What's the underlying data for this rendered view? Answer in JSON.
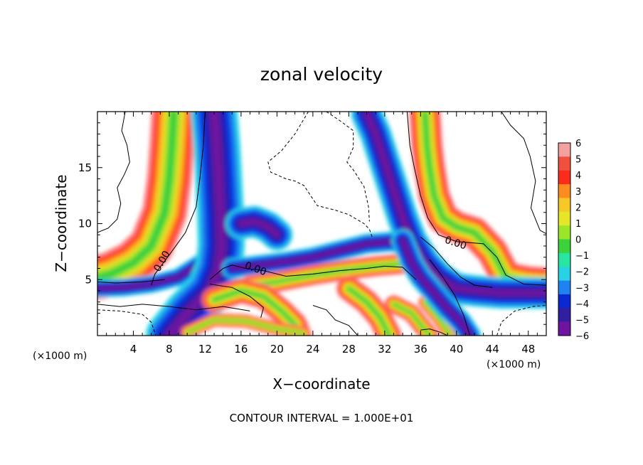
{
  "chart_data": {
    "type": "heatmap",
    "title": "zonal velocity",
    "xlabel": "X−coordinate",
    "ylabel": "Z−coordinate",
    "x_unit": "(×1000 m)",
    "footer": "CONTOUR INTERVAL = 1.000E+01",
    "xlim": [
      0,
      50
    ],
    "ylim": [
      0,
      20
    ],
    "x_ticks": [
      4,
      8,
      12,
      16,
      20,
      24,
      28,
      32,
      36,
      40,
      44,
      48
    ],
    "y_ticks": [
      5,
      10,
      15
    ],
    "colorbar": {
      "levels": [
        6,
        5,
        4,
        3,
        2,
        1,
        0,
        -1,
        -2,
        -3,
        -4,
        -5,
        -6
      ],
      "colors": [
        "#f4a0a0",
        "#f0503c",
        "#ff2a1e",
        "#ff8c1e",
        "#f5c828",
        "#e6e628",
        "#9be628",
        "#3cd23c",
        "#28e6a0",
        "#28d2e6",
        "#1e82f0",
        "#0a28d2",
        "#321ea0",
        "#6e14a0"
      ]
    },
    "contour_labels": [
      {
        "text": "0.00",
        "x": 7.5,
        "y": 6.5,
        "angle": -60
      },
      {
        "text": "0.00",
        "x": 17.5,
        "y": 5.7,
        "angle": 20
      },
      {
        "text": "0.00",
        "x": 39.8,
        "y": 8.0,
        "angle": 18
      }
    ],
    "features": [
      {
        "name": "jet-left",
        "kind": "positive",
        "points": [
          [
            8.5,
            19.8
          ],
          [
            8.3,
            17
          ],
          [
            8,
            14
          ],
          [
            7.5,
            11
          ],
          [
            6,
            8
          ],
          [
            4,
            6.5
          ],
          [
            1.5,
            5.5
          ],
          [
            0,
            5.2
          ]
        ],
        "half_width": 2.0
      },
      {
        "name": "band-left-neg",
        "kind": "negative",
        "points": [
          [
            0,
            4.2
          ],
          [
            3,
            4.3
          ],
          [
            6,
            4.6
          ],
          [
            9,
            5.2
          ],
          [
            11.5,
            6.5
          ]
        ],
        "half_width": 0.8
      },
      {
        "name": "jet-left-blue",
        "kind": "negative",
        "points": [
          [
            13,
            19.8
          ],
          [
            13.3,
            17
          ],
          [
            13.5,
            14
          ],
          [
            13.7,
            11
          ],
          [
            13.8,
            8
          ],
          [
            13.5,
            6
          ],
          [
            12.5,
            4
          ],
          [
            10,
            2
          ],
          [
            8,
            0
          ]
        ],
        "half_width": 2.1
      },
      {
        "name": "eddy-blob",
        "kind": "negative",
        "points": [
          [
            16,
            10
          ],
          [
            17.5,
            10.2
          ],
          [
            19,
            9.7
          ],
          [
            20,
            9.0
          ]
        ],
        "half_width": 1.4
      },
      {
        "name": "band-mid-neg",
        "kind": "negative",
        "points": [
          [
            15,
            6
          ],
          [
            18,
            6.3
          ],
          [
            21,
            6.6
          ],
          [
            24,
            7.0
          ],
          [
            27,
            7.6
          ],
          [
            30,
            8.2
          ],
          [
            33,
            8.4
          ],
          [
            35,
            7.6
          ],
          [
            37,
            6.4
          ]
        ],
        "half_width": 0.9
      },
      {
        "name": "band-mid-pos",
        "kind": "positive",
        "points": [
          [
            17,
            4.5
          ],
          [
            20,
            4.8
          ],
          [
            24,
            5.4
          ],
          [
            28,
            5.9
          ],
          [
            31,
            6.2
          ],
          [
            34,
            6.4
          ]
        ],
        "half_width": 0.9
      },
      {
        "name": "low-pos-a",
        "kind": "positive",
        "points": [
          [
            13,
            3.2
          ],
          [
            16,
            4.0
          ],
          [
            18.5,
            3.5
          ],
          [
            20.5,
            2.2
          ],
          [
            22,
            1.0
          ],
          [
            22.5,
            0
          ]
        ],
        "half_width": 1.1
      },
      {
        "name": "low-pos-b",
        "kind": "positive",
        "points": [
          [
            10,
            0.3
          ],
          [
            13,
            1.4
          ],
          [
            16.5,
            1.3
          ],
          [
            20,
            0.6
          ],
          [
            23,
            0.2
          ]
        ],
        "half_width": 0.6
      },
      {
        "name": "low-pos-c",
        "kind": "positive",
        "points": [
          [
            28,
            4.2
          ],
          [
            30,
            3.0
          ],
          [
            31.5,
            1.6
          ],
          [
            32.5,
            0
          ]
        ],
        "half_width": 1.1
      },
      {
        "name": "low-pos-d",
        "kind": "positive",
        "points": [
          [
            33,
            2.8
          ],
          [
            35,
            2.0
          ],
          [
            36,
            1.0
          ],
          [
            37,
            0
          ]
        ],
        "half_width": 0.8
      },
      {
        "name": "low-pos-e",
        "kind": "positive",
        "points": [
          [
            36.5,
            3.0
          ],
          [
            38,
            1.6
          ],
          [
            39.3,
            0
          ]
        ],
        "half_width": 0.6
      },
      {
        "name": "jet-right-pos",
        "kind": "positive",
        "points": [
          [
            36.5,
            19.8
          ],
          [
            36.7,
            17
          ],
          [
            37,
            15
          ],
          [
            37.5,
            12.5
          ],
          [
            38.5,
            10.5
          ],
          [
            40,
            9.7
          ],
          [
            42,
            9.2
          ],
          [
            44,
            7.5
          ],
          [
            45.5,
            5.2
          ],
          [
            48,
            4.8
          ],
          [
            50,
            4.7
          ]
        ],
        "half_width": 1.4
      },
      {
        "name": "jet-right-neg",
        "kind": "negative",
        "points": [
          [
            30,
            19.8
          ],
          [
            31,
            18
          ],
          [
            32,
            15.5
          ],
          [
            33,
            13
          ],
          [
            34,
            10.5
          ],
          [
            35,
            8.5
          ],
          [
            36.5,
            6.5
          ],
          [
            38,
            5.2
          ],
          [
            40,
            4.2
          ],
          [
            42,
            4.0
          ],
          [
            45,
            3.8
          ],
          [
            48,
            3.8
          ],
          [
            50,
            3.8
          ]
        ],
        "half_width": 1.4
      },
      {
        "name": "descend-neg",
        "kind": "negative",
        "points": [
          [
            34,
            8.5
          ],
          [
            35,
            6.5
          ],
          [
            36,
            5.2
          ],
          [
            37.5,
            3.8
          ],
          [
            39,
            2.4
          ],
          [
            40.5,
            1.2
          ],
          [
            41.5,
            0
          ]
        ],
        "half_width": 1.0
      }
    ],
    "contours": {
      "solid": [
        [
          [
            0,
            9.2
          ],
          [
            1.2,
            9.6
          ],
          [
            2.2,
            10.4
          ],
          [
            2.6,
            11.8
          ],
          [
            2.2,
            13.2
          ],
          [
            3,
            14.4
          ],
          [
            3.6,
            15.5
          ],
          [
            3.3,
            17
          ],
          [
            2.7,
            18.3
          ],
          [
            3,
            19.6
          ],
          [
            3.1,
            20
          ]
        ],
        [
          [
            12,
            20
          ],
          [
            11.8,
            17
          ],
          [
            11.4,
            14
          ],
          [
            11,
            11.5
          ],
          [
            9.8,
            9.2
          ],
          [
            8,
            7.2
          ],
          [
            6.4,
            5.5
          ],
          [
            6,
            4.5
          ]
        ],
        [
          [
            0,
            4.8
          ],
          [
            2,
            4.7
          ],
          [
            5,
            4.8
          ],
          [
            7.5,
            5
          ]
        ],
        [
          [
            12.5,
            5
          ],
          [
            14,
            6
          ],
          [
            15,
            6.3
          ],
          [
            16.5,
            6
          ],
          [
            18.5,
            5.8
          ],
          [
            21,
            5.3
          ],
          [
            24,
            5.5
          ],
          [
            27,
            5.8
          ],
          [
            30,
            6
          ],
          [
            32,
            6.2
          ],
          [
            34,
            6.1
          ],
          [
            35.5,
            5
          ]
        ],
        [
          [
            12.5,
            4.6
          ],
          [
            15,
            4.3
          ],
          [
            17,
            3.5
          ],
          [
            18.5,
            2.5
          ],
          [
            18.2,
            1.6
          ]
        ],
        [
          [
            0,
            2.8
          ],
          [
            2.5,
            2.6
          ],
          [
            5,
            2.8
          ],
          [
            8,
            2.6
          ],
          [
            11,
            2.3
          ],
          [
            14,
            2.6
          ],
          [
            17,
            2.2
          ]
        ],
        [
          [
            24,
            2.7
          ],
          [
            25.5,
            2.3
          ],
          [
            26.5,
            1.4
          ],
          [
            28,
            0.9
          ],
          [
            29,
            0
          ]
        ],
        [
          [
            34.5,
            20
          ],
          [
            34.8,
            17
          ],
          [
            35.3,
            15
          ],
          [
            36,
            12.5
          ],
          [
            36.8,
            10.5
          ],
          [
            38,
            9
          ],
          [
            40,
            8.4
          ],
          [
            43,
            8.2
          ],
          [
            44.5,
            7
          ],
          [
            45.5,
            5.4
          ],
          [
            47.5,
            4.6
          ],
          [
            50,
            4.5
          ]
        ],
        [
          [
            36,
            8.8
          ],
          [
            37.5,
            7.8
          ],
          [
            39,
            6.4
          ],
          [
            40.5,
            5.2
          ],
          [
            42,
            4.5
          ],
          [
            44,
            4.3
          ]
        ],
        [
          [
            37,
            6.8
          ],
          [
            38.5,
            5.2
          ],
          [
            39.8,
            3.6
          ],
          [
            40.8,
            1.8
          ],
          [
            41.5,
            0
          ]
        ],
        [
          [
            45,
            20
          ],
          [
            46,
            18.8
          ],
          [
            47.5,
            17.6
          ],
          [
            48.2,
            16
          ],
          [
            48.8,
            13.8
          ],
          [
            48.3,
            11.4
          ],
          [
            49.3,
            9.4
          ],
          [
            50,
            9.1
          ]
        ],
        [
          [
            36,
            0.5
          ],
          [
            37,
            0.6
          ],
          [
            38.2,
            0.3
          ],
          [
            39,
            0
          ]
        ]
      ],
      "dashed": [
        [
          [
            23.5,
            20
          ],
          [
            22,
            18
          ],
          [
            20.5,
            16.5
          ],
          [
            19,
            15.5
          ],
          [
            19.3,
            14.6
          ],
          [
            21,
            14
          ],
          [
            22,
            13.8
          ],
          [
            23,
            13.4
          ],
          [
            24.5,
            11.6
          ],
          [
            26.5,
            11.2
          ],
          [
            28,
            10.8
          ],
          [
            29.7,
            10
          ],
          [
            30.3,
            9.5
          ],
          [
            30.6,
            8.8
          ]
        ],
        [
          [
            25.5,
            20
          ],
          [
            27,
            19.2
          ],
          [
            28.5,
            18.3
          ],
          [
            28.5,
            16.8
          ],
          [
            27.8,
            15.5
          ],
          [
            28.6,
            14.7
          ],
          [
            29.7,
            13.3
          ],
          [
            30.2,
            11.5
          ],
          [
            30.3,
            10.2
          ]
        ],
        [
          [
            0,
            2.3
          ],
          [
            2.5,
            2.2
          ],
          [
            5,
            1.9
          ],
          [
            6,
            1.2
          ],
          [
            6.5,
            0
          ]
        ],
        [
          [
            44.5,
            0
          ],
          [
            45,
            1.2
          ],
          [
            46.5,
            2.2
          ],
          [
            48.5,
            2.6
          ],
          [
            50,
            2.7
          ]
        ]
      ]
    }
  }
}
